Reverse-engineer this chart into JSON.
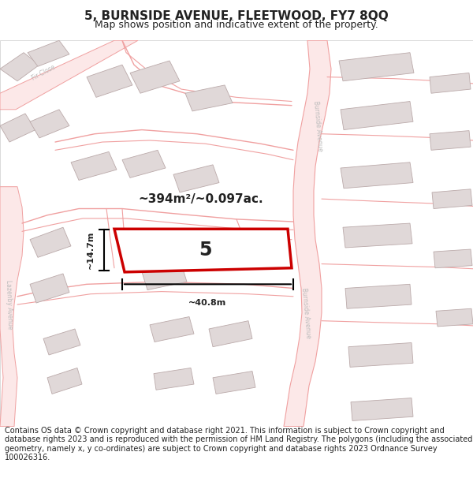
{
  "title": "5, BURNSIDE AVENUE, FLEETWOOD, FY7 8QQ",
  "subtitle": "Map shows position and indicative extent of the property.",
  "footer": "Contains OS data © Crown copyright and database right 2021. This information is subject to Crown copyright and database rights 2023 and is reproduced with the permission of HM Land Registry. The polygons (including the associated geometry, namely x, y co-ordinates) are subject to Crown copyright and database rights 2023 Ordnance Survey 100026316.",
  "area_label": "~394m²/~0.097ac.",
  "width_label": "~40.8m",
  "height_label": "~14.7m",
  "plot_number": "5",
  "bg_color": "#ffffff",
  "road_line_color": "#f0a0a0",
  "building_fill": "#e0d8d8",
  "building_edge": "#bbaaaa",
  "plot_fill": "#ffffff",
  "plot_edge": "#cc0000",
  "text_color": "#222222",
  "road_label_color": "#bbbbbb",
  "title_fontsize": 11,
  "subtitle_fontsize": 9,
  "footer_fontsize": 7,
  "map_border_color": "#cccccc"
}
